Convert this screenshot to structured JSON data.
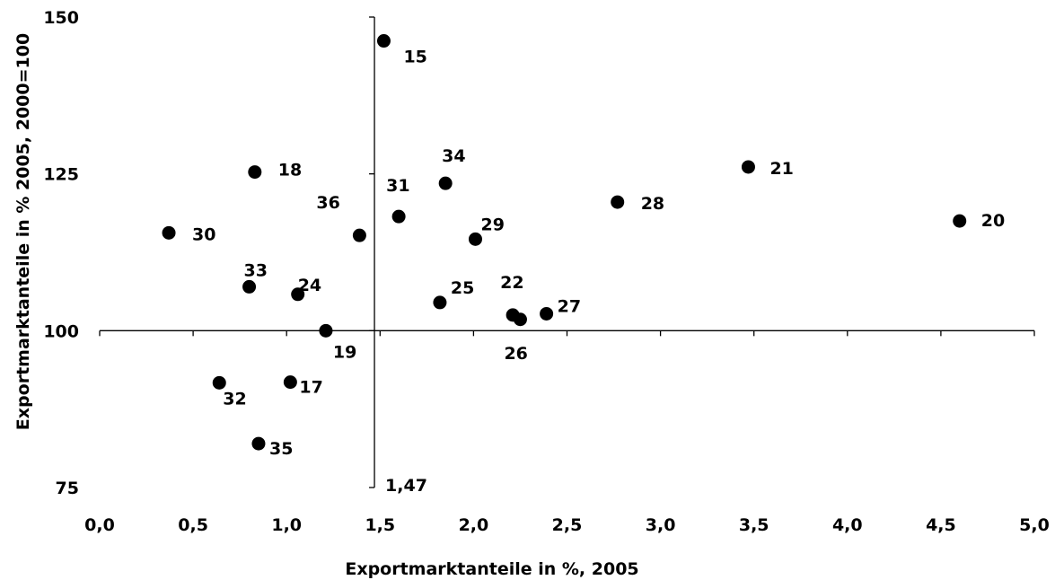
{
  "chart_data": {
    "type": "scatter",
    "title": "",
    "xlabel": "Exportmarktanteile in %, 2005",
    "ylabel": "Exportmarktanteile in % 2005, 2000=100",
    "xlim": [
      0,
      5
    ],
    "ylim": [
      75,
      150
    ],
    "x_ticks": [
      "0,0",
      "0,5",
      "1,0",
      "1,5",
      "2,0",
      "2,5",
      "3,0",
      "3,5",
      "4,0",
      "4,5",
      "5,0"
    ],
    "y_ticks": [
      "75",
      "100",
      "125",
      "150"
    ],
    "x_axis_crosses_y_at": 100,
    "y_axis_crosses_x_at": 1.47,
    "y_axis_cross_label": "1,47",
    "marker_color": "#000000",
    "grid": false,
    "legend": "none",
    "points": [
      {
        "label": "15",
        "x": 1.52,
        "y": 146.2
      },
      {
        "label": "17",
        "x": 1.02,
        "y": 91.8
      },
      {
        "label": "18",
        "x": 0.83,
        "y": 125.3
      },
      {
        "label": "19",
        "x": 1.21,
        "y": 100.0
      },
      {
        "label": "20",
        "x": 4.6,
        "y": 117.5
      },
      {
        "label": "21",
        "x": 3.47,
        "y": 126.1
      },
      {
        "label": "22",
        "x": 2.21,
        "y": 102.5
      },
      {
        "label": "24",
        "x": 1.06,
        "y": 105.8
      },
      {
        "label": "25",
        "x": 1.82,
        "y": 104.5
      },
      {
        "label": "26",
        "x": 2.25,
        "y": 101.8
      },
      {
        "label": "27",
        "x": 2.39,
        "y": 102.7
      },
      {
        "label": "28",
        "x": 2.77,
        "y": 120.5
      },
      {
        "label": "29",
        "x": 2.01,
        "y": 114.6
      },
      {
        "label": "30",
        "x": 0.37,
        "y": 115.6
      },
      {
        "label": "31",
        "x": 1.6,
        "y": 118.2
      },
      {
        "label": "32",
        "x": 0.64,
        "y": 91.7
      },
      {
        "label": "33",
        "x": 0.8,
        "y": 107.0
      },
      {
        "label": "34",
        "x": 1.85,
        "y": 123.5
      },
      {
        "label": "35",
        "x": 0.85,
        "y": 82.0
      },
      {
        "label": "36",
        "x": 1.39,
        "y": 115.2
      }
    ]
  }
}
